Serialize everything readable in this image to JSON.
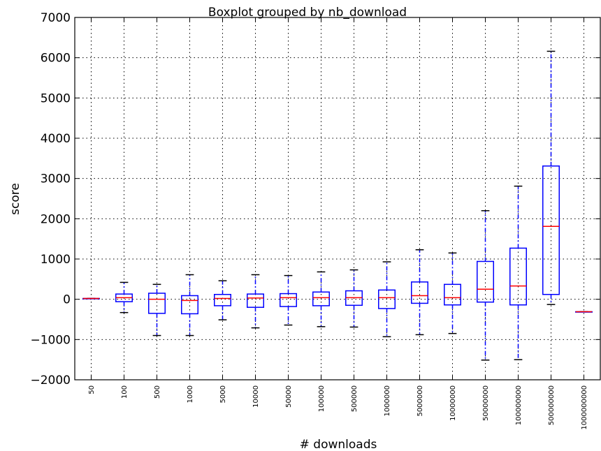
{
  "chart_data": {
    "type": "boxplot",
    "title": "Boxplot grouped by nb_download",
    "xlabel": "# downloads",
    "ylabel": "score",
    "ylim": [
      -2000,
      7000
    ],
    "yticks": [
      -2000,
      -1000,
      0,
      1000,
      2000,
      3000,
      4000,
      5000,
      6000,
      7000
    ],
    "ytick_labels": [
      "−2000",
      "−1000",
      "0",
      "1000",
      "2000",
      "3000",
      "4000",
      "5000",
      "6000",
      "7000"
    ],
    "grid": true,
    "categories": [
      "50",
      "100",
      "500",
      "1000",
      "5000",
      "10000",
      "50000",
      "100000",
      "500000",
      "1000000",
      "5000000",
      "10000000",
      "50000000",
      "100000000",
      "500000000",
      "1000000000"
    ],
    "boxes": [
      {
        "whisker_low": 20,
        "q1": 20,
        "median": 20,
        "q3": 20,
        "whisker_high": 20
      },
      {
        "whisker_low": -330,
        "q1": -60,
        "median": 40,
        "q3": 130,
        "whisker_high": 420
      },
      {
        "whisker_low": -900,
        "q1": -350,
        "median": 0,
        "q3": 150,
        "whisker_high": 370
      },
      {
        "whisker_low": -900,
        "q1": -360,
        "median": -30,
        "q3": 90,
        "whisker_high": 610
      },
      {
        "whisker_low": -510,
        "q1": -160,
        "median": 20,
        "q3": 120,
        "whisker_high": 460
      },
      {
        "whisker_low": -710,
        "q1": -200,
        "median": 30,
        "q3": 130,
        "whisker_high": 610
      },
      {
        "whisker_low": -640,
        "q1": -180,
        "median": 40,
        "q3": 140,
        "whisker_high": 590
      },
      {
        "whisker_low": -680,
        "q1": -160,
        "median": 40,
        "q3": 180,
        "whisker_high": 680
      },
      {
        "whisker_low": -690,
        "q1": -150,
        "median": 40,
        "q3": 210,
        "whisker_high": 730
      },
      {
        "whisker_low": -930,
        "q1": -230,
        "median": 40,
        "q3": 230,
        "whisker_high": 930
      },
      {
        "whisker_low": -880,
        "q1": -100,
        "median": 90,
        "q3": 430,
        "whisker_high": 1230
      },
      {
        "whisker_low": -850,
        "q1": -140,
        "median": 40,
        "q3": 370,
        "whisker_high": 1150
      },
      {
        "whisker_low": -1510,
        "q1": -70,
        "median": 250,
        "q3": 940,
        "whisker_high": 2200
      },
      {
        "whisker_low": -1500,
        "q1": -140,
        "median": 330,
        "q3": 1270,
        "whisker_high": 2810
      },
      {
        "whisker_low": -130,
        "q1": 120,
        "median": 1810,
        "q3": 3310,
        "whisker_high": 6160
      },
      {
        "whisker_low": -310,
        "q1": -310,
        "median": -310,
        "q3": -310,
        "whisker_high": -310
      }
    ],
    "colors": {
      "box": "#0000ff",
      "median": "#ff0000",
      "whisker": "#0000ff",
      "cap": "#000000",
      "grid": "#000000"
    }
  }
}
